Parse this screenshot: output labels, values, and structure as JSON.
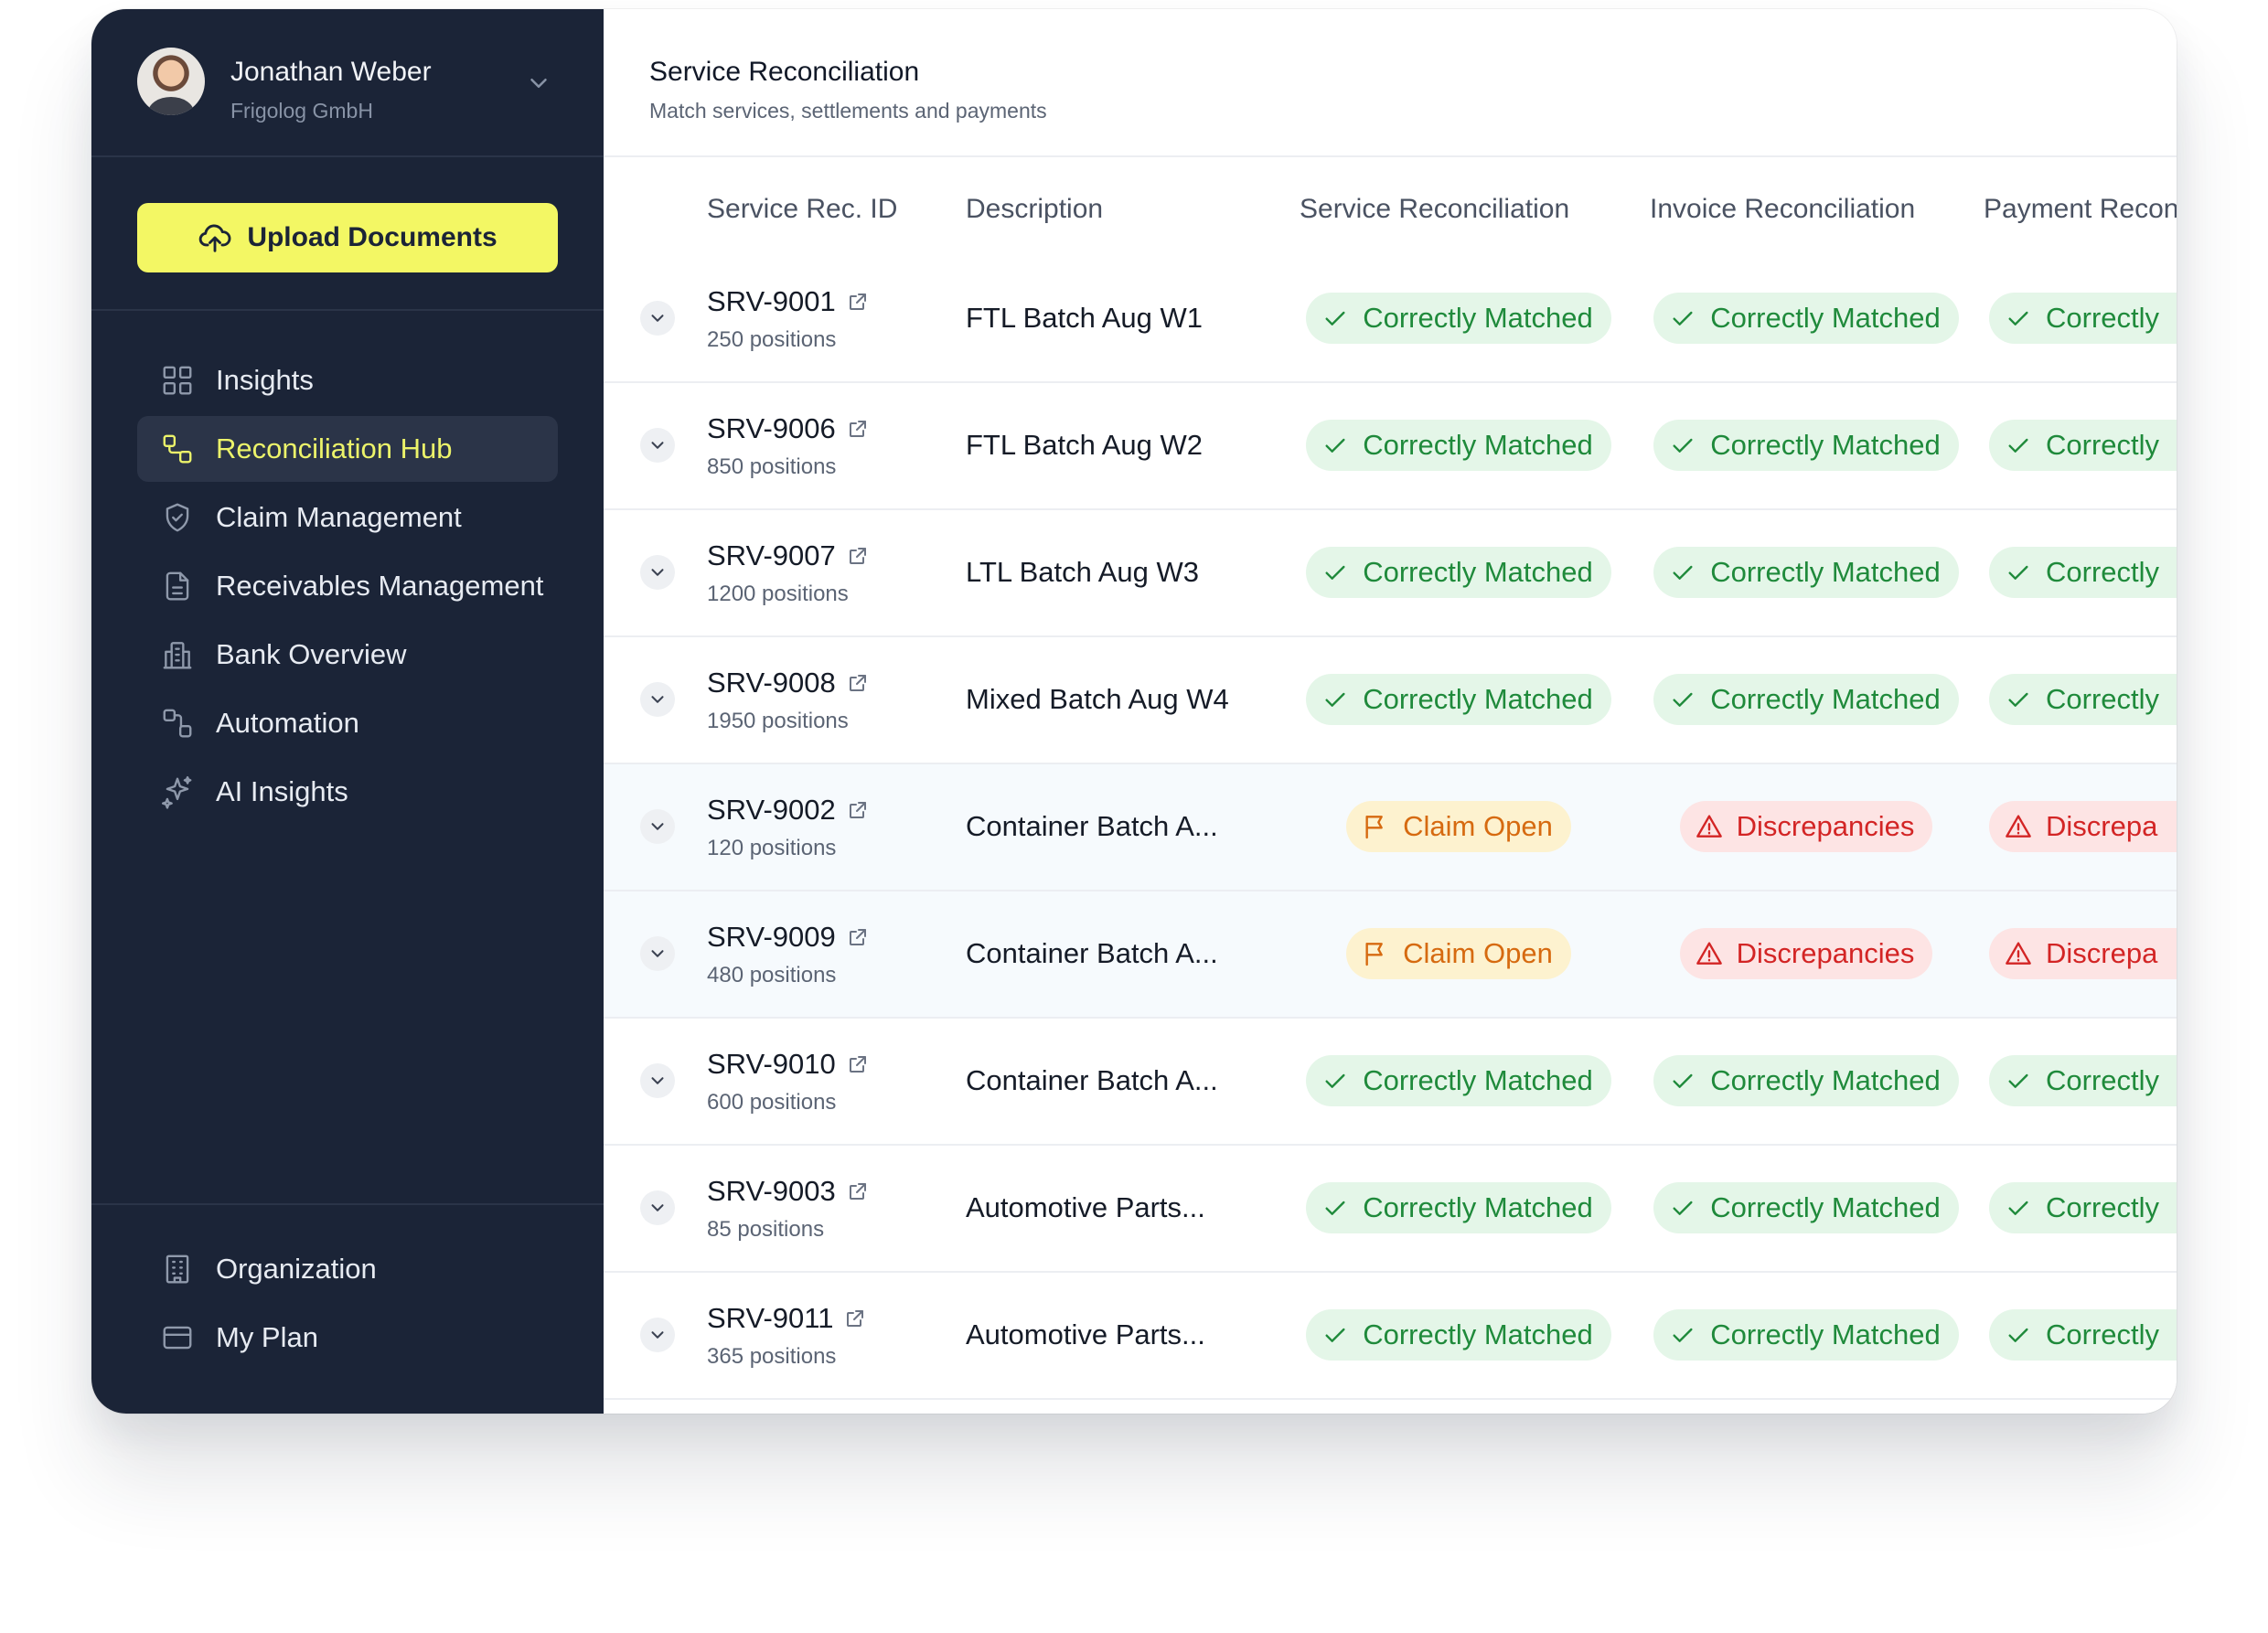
{
  "user": {
    "name": "Jonathan Weber",
    "company": "Frigolog GmbH"
  },
  "upload": {
    "label": "Upload Documents"
  },
  "nav": [
    {
      "label": "Insights",
      "icon": "grid-icon",
      "active": false
    },
    {
      "label": "Reconciliation Hub",
      "icon": "flow-icon",
      "active": true
    },
    {
      "label": "Claim Management",
      "icon": "shield-check-icon",
      "active": false
    },
    {
      "label": "Receivables Management",
      "icon": "document-icon",
      "active": false
    },
    {
      "label": "Bank Overview",
      "icon": "building-icon",
      "active": false
    },
    {
      "label": "Automation",
      "icon": "automation-icon",
      "active": false
    },
    {
      "label": "AI Insights",
      "icon": "sparkles-icon",
      "active": false
    }
  ],
  "nav_bottom": [
    {
      "label": "Organization",
      "icon": "office-icon"
    },
    {
      "label": "My Plan",
      "icon": "credit-card-icon"
    }
  ],
  "header": {
    "title": "Service Reconciliation",
    "subtitle": "Match services, settlements and payments"
  },
  "columns": {
    "id": "Service Rec. ID",
    "description": "Description",
    "service": "Service Reconciliation",
    "invoice": "Invoice Reconciliation",
    "payment": "Payment Recon"
  },
  "rows": [
    {
      "id": "SRV-9001",
      "positions": "250 positions",
      "description": "FTL Batch Aug W1",
      "service": {
        "label": "Correctly Matched",
        "status": "ok"
      },
      "invoice": {
        "label": "Correctly Matched",
        "status": "ok"
      },
      "payment": {
        "label": "Correctly",
        "status": "ok"
      }
    },
    {
      "id": "SRV-9006",
      "positions": "850 positions",
      "description": "FTL Batch Aug W2",
      "service": {
        "label": "Correctly Matched",
        "status": "ok"
      },
      "invoice": {
        "label": "Correctly Matched",
        "status": "ok"
      },
      "payment": {
        "label": "Correctly",
        "status": "ok"
      }
    },
    {
      "id": "SRV-9007",
      "positions": "1200 positions",
      "description": "LTL Batch Aug W3",
      "service": {
        "label": "Correctly Matched",
        "status": "ok"
      },
      "invoice": {
        "label": "Correctly Matched",
        "status": "ok"
      },
      "payment": {
        "label": "Correctly",
        "status": "ok"
      }
    },
    {
      "id": "SRV-9008",
      "positions": "1950 positions",
      "description": "Mixed Batch Aug W4",
      "service": {
        "label": "Correctly Matched",
        "status": "ok"
      },
      "invoice": {
        "label": "Correctly Matched",
        "status": "ok"
      },
      "payment": {
        "label": "Correctly",
        "status": "ok"
      }
    },
    {
      "id": "SRV-9002",
      "positions": "120 positions",
      "description": "Container Batch A...",
      "service": {
        "label": "Claim Open",
        "status": "claim"
      },
      "invoice": {
        "label": "Discrepancies",
        "status": "disc"
      },
      "payment": {
        "label": "Discrepa",
        "status": "disc"
      }
    },
    {
      "id": "SRV-9009",
      "positions": "480 positions",
      "description": "Container Batch A...",
      "service": {
        "label": "Claim Open",
        "status": "claim"
      },
      "invoice": {
        "label": "Discrepancies",
        "status": "disc"
      },
      "payment": {
        "label": "Discrepa",
        "status": "disc"
      }
    },
    {
      "id": "SRV-9010",
      "positions": "600 positions",
      "description": "Container Batch A...",
      "service": {
        "label": "Correctly Matched",
        "status": "ok"
      },
      "invoice": {
        "label": "Correctly Matched",
        "status": "ok"
      },
      "payment": {
        "label": "Correctly",
        "status": "ok"
      }
    },
    {
      "id": "SRV-9003",
      "positions": "85 positions",
      "description": "Automotive Parts...",
      "service": {
        "label": "Correctly Matched",
        "status": "ok"
      },
      "invoice": {
        "label": "Correctly Matched",
        "status": "ok"
      },
      "payment": {
        "label": "Correctly",
        "status": "ok"
      }
    },
    {
      "id": "SRV-9011",
      "positions": "365 positions",
      "description": "Automotive Parts...",
      "service": {
        "label": "Correctly Matched",
        "status": "ok"
      },
      "invoice": {
        "label": "Correctly Matched",
        "status": "ok"
      },
      "payment": {
        "label": "Correctly",
        "status": "ok"
      }
    }
  ],
  "colors": {
    "sidebar": "#1b2437",
    "accent": "#f3f764",
    "active_text": "#ecf36a",
    "ok": "#1f8a3b",
    "claim": "#d66a10",
    "discrepancy": "#d32525"
  }
}
